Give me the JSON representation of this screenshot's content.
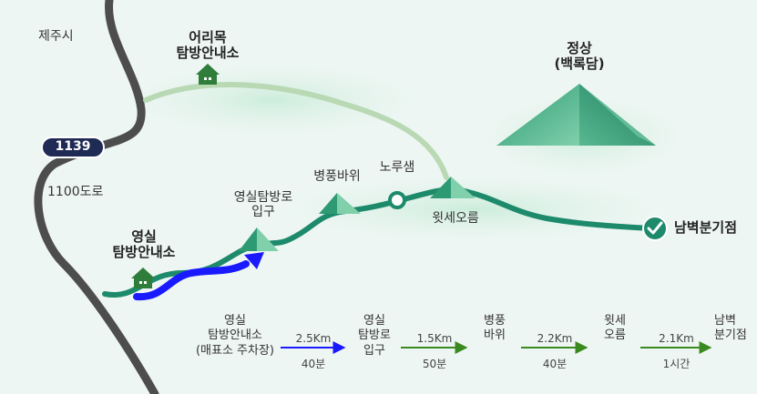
{
  "map": {
    "labels": {
      "jeju_city": "제주시",
      "road_1100": "1100도로",
      "route_1139": "1139",
      "eorimok_line1": "어리목",
      "eorimok_line2": "탐방안내소",
      "summit_line1": "정상",
      "summit_line2": "(백록담)",
      "byeongpung": "병풍바위",
      "norusaem": "노루샘",
      "witse": "윗세오름",
      "entrance_line1": "영실탐방로",
      "entrance_line2": "입구",
      "yeongsil_line1": "영실",
      "yeongsil_line2": "탐방안내소",
      "nambyeok": "남벽분기점"
    },
    "colors": {
      "trail_main": "#1d8a6b",
      "trail_light": "#b9d9b4",
      "trail_highlight": "#1a1aff",
      "road": "#4d4d4d",
      "badge": "#1f2a55",
      "mountain": "#3aa47e",
      "house": "#2f7d3a"
    }
  },
  "route_bar": {
    "stops": [
      {
        "line1": "영실",
        "line2": "탐방안내소",
        "line3": "(매표소 주차장)"
      },
      {
        "line1": "영실",
        "line2": "탐방로",
        "line3": "입구"
      },
      {
        "line1": "병풍",
        "line2": "바위",
        "line3": ""
      },
      {
        "line1": "윗세",
        "line2": "오름",
        "line3": ""
      },
      {
        "line1": "남벽",
        "line2": "분기점",
        "line3": ""
      }
    ],
    "segments": [
      {
        "distance": "2.5Km",
        "time": "40분",
        "color": "#1a1aff"
      },
      {
        "distance": "1.5Km",
        "time": "50분",
        "color": "#3a8a1f"
      },
      {
        "distance": "2.2Km",
        "time": "40분",
        "color": "#3a8a1f"
      },
      {
        "distance": "2.1Km",
        "time": "1시간",
        "color": "#3a8a1f"
      }
    ]
  }
}
